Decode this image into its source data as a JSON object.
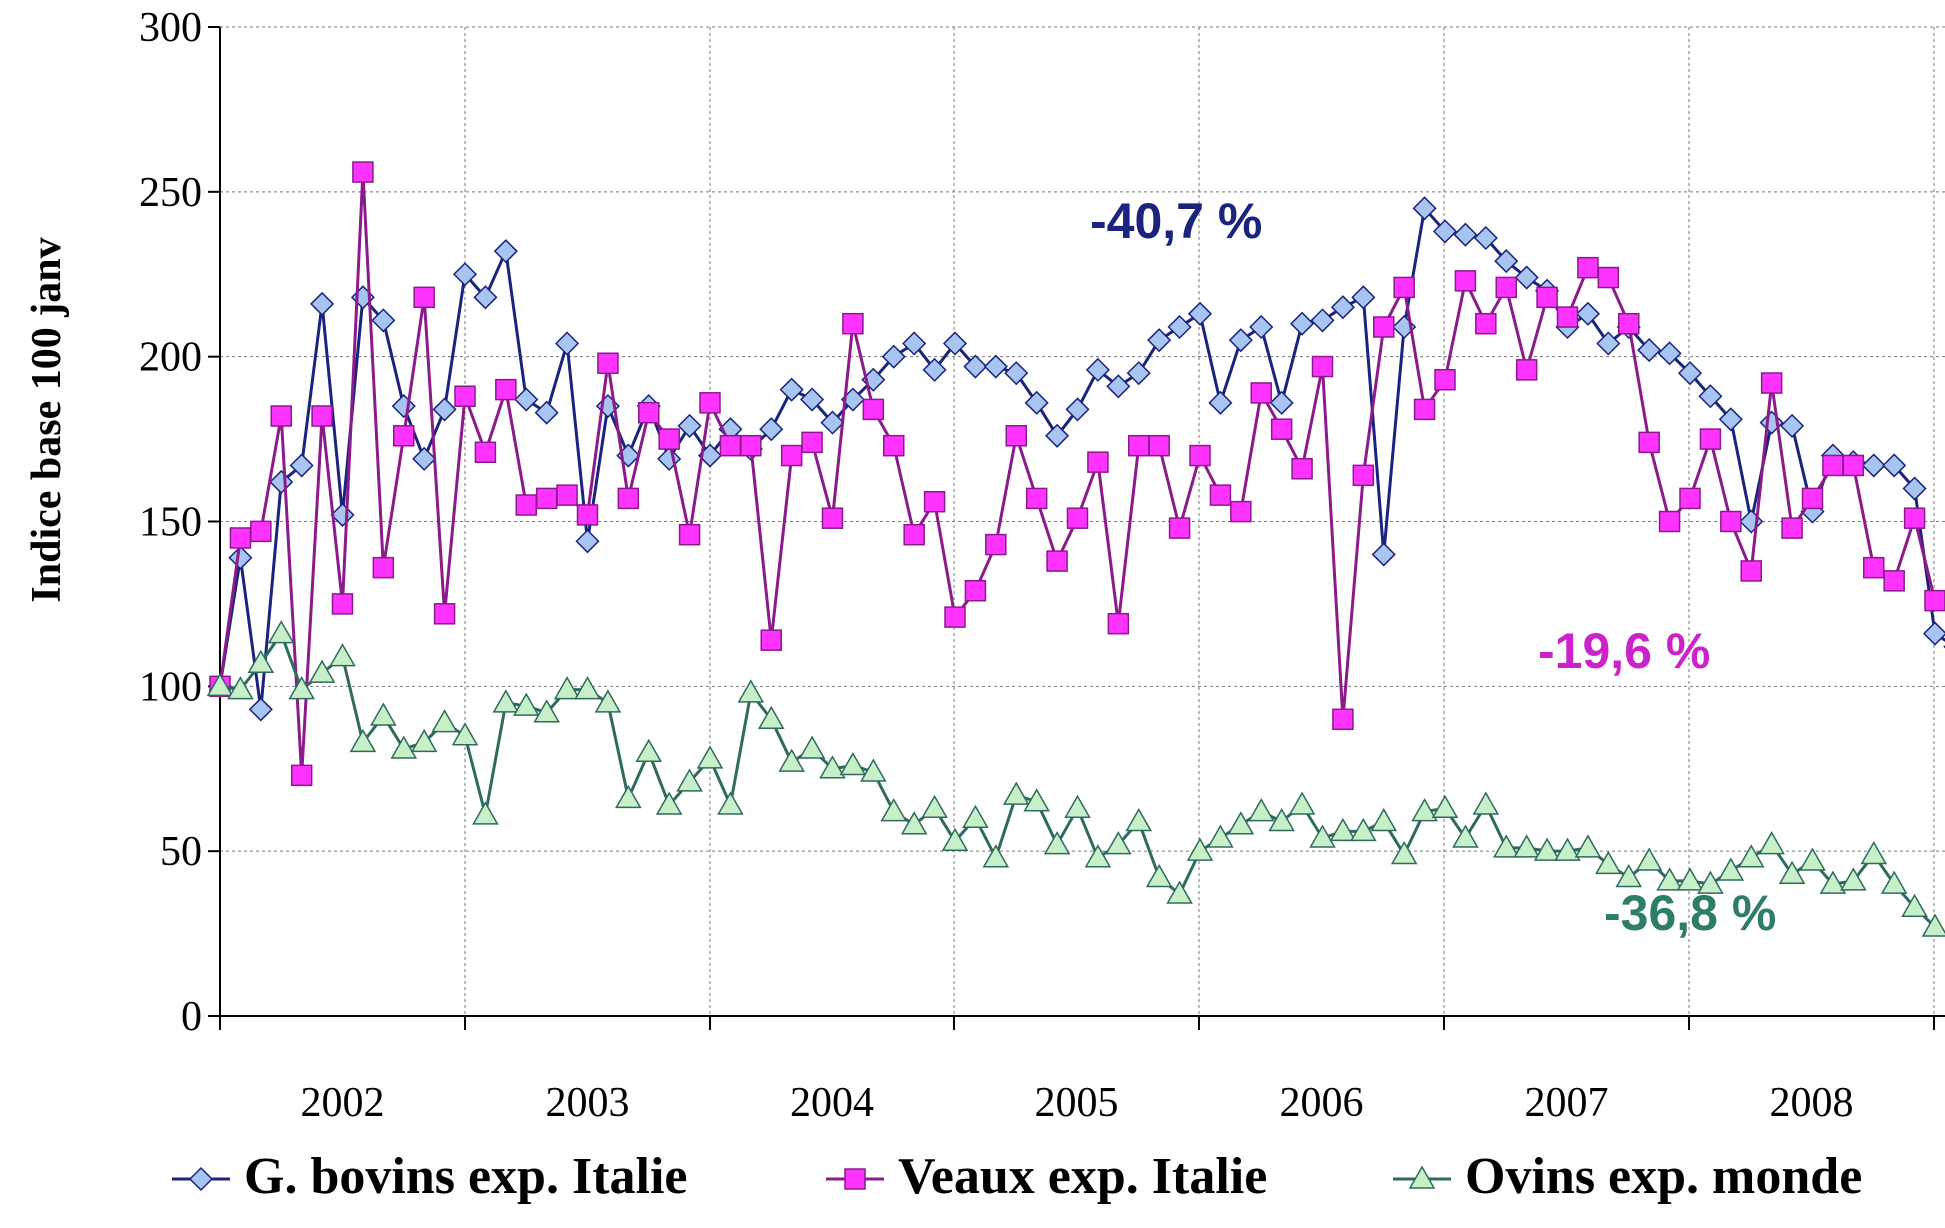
{
  "chart_data": {
    "type": "line",
    "ylabel": "Indice base 100 janv",
    "xlabel": "",
    "ylim": [
      0,
      300
    ],
    "yticks": [
      0,
      50,
      100,
      150,
      200,
      250,
      300
    ],
    "xticks": [
      "2002",
      "2003",
      "2004",
      "2005",
      "2006",
      "2007",
      "2008"
    ],
    "grid": true,
    "legend_position": "bottom",
    "series": [
      {
        "name": "G. bovins exp. Italie",
        "color": "#1a237e",
        "fill": "#a8c4f0",
        "marker": "diamond",
        "values": [
          100,
          139,
          93,
          162,
          167,
          216,
          152,
          218,
          211,
          185,
          169,
          184,
          225,
          218,
          232,
          187,
          183,
          204,
          144,
          185,
          170,
          185,
          169,
          179,
          170,
          178,
          172,
          178,
          190,
          187,
          180,
          187,
          193,
          200,
          204,
          196,
          204,
          197,
          197,
          195,
          186,
          176,
          184,
          196,
          191,
          195,
          205,
          209,
          213,
          186,
          205,
          209,
          186,
          210,
          211,
          215,
          218,
          140,
          209,
          245,
          238,
          237,
          236,
          229,
          224,
          220,
          209,
          213,
          204,
          209,
          202,
          201,
          195,
          188,
          181,
          150,
          180,
          179,
          153,
          170,
          168,
          167,
          167,
          160,
          116,
          112
        ]
      },
      {
        "name": "Veaux exp. Italie",
        "color": "#8b1a8b",
        "fill": "#ff33ff",
        "marker": "square",
        "values": [
          100,
          145,
          147,
          182,
          73,
          182,
          125,
          256,
          136,
          176,
          218,
          122,
          188,
          171,
          190,
          155,
          157,
          158,
          152,
          198,
          157,
          183,
          175,
          146,
          186,
          173,
          173,
          114,
          170,
          174,
          151,
          210,
          184,
          173,
          146,
          156,
          121,
          129,
          143,
          176,
          157,
          138,
          151,
          168,
          119,
          173,
          173,
          148,
          170,
          158,
          153,
          189,
          178,
          166,
          197,
          90,
          164,
          209,
          221,
          184,
          193,
          223,
          210,
          221,
          196,
          218,
          212,
          227,
          224,
          210,
          174,
          150,
          157,
          175,
          150,
          135,
          192,
          148,
          157,
          167,
          167,
          136,
          132,
          151,
          126
        ]
      },
      {
        "name": "Ovins exp. monde",
        "color": "#2e6b5e",
        "fill": "#c8f0c8",
        "marker": "triangle",
        "values": [
          100,
          99,
          107,
          116,
          99,
          104,
          109,
          83,
          91,
          81,
          83,
          89,
          85,
          61,
          95,
          94,
          92,
          99,
          99,
          95,
          66,
          80,
          64,
          71,
          78,
          64,
          98,
          90,
          77,
          81,
          75,
          76,
          74,
          62,
          58,
          63,
          53,
          60,
          48,
          67,
          65,
          52,
          63,
          48,
          52,
          59,
          42,
          37,
          50,
          54,
          58,
          62,
          59,
          64,
          54,
          56,
          56,
          59,
          49,
          62,
          63,
          54,
          64,
          51,
          51,
          50,
          50,
          51,
          46,
          42,
          47,
          41,
          41,
          40,
          44,
          48,
          52,
          43,
          47,
          40,
          41,
          49,
          40,
          33,
          27
        ]
      }
    ],
    "annotations": [
      {
        "text": "-40,7 %",
        "color": "#1a237e"
      },
      {
        "text": "-19,6 %",
        "color": "#cc22cc"
      },
      {
        "text": "-36,8 %",
        "color": "#2e7d6b"
      }
    ]
  }
}
